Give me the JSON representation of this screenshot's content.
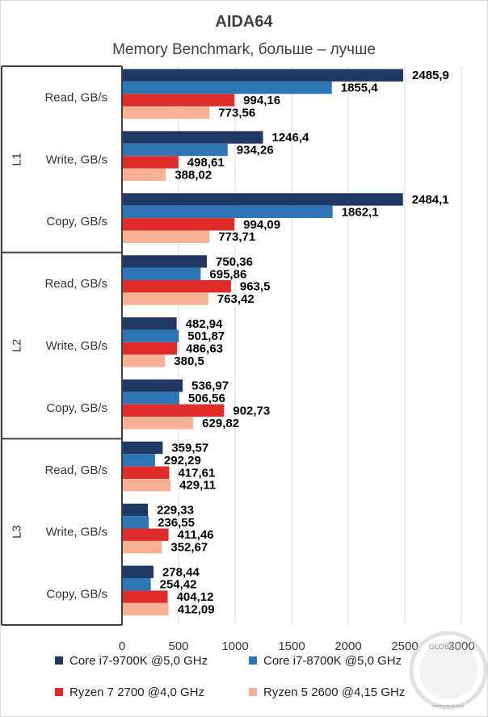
{
  "chart_data": {
    "type": "bar",
    "orientation": "horizontal",
    "title": "AIDA64",
    "subtitle": "Memory Benchmark, больше – лучше",
    "xlim": [
      0,
      3000
    ],
    "xticks": [
      0,
      500,
      1000,
      1500,
      2000,
      2500,
      3000
    ],
    "grid": true,
    "legend_position": "bottom",
    "groups": [
      {
        "label": "L1",
        "categories": [
          "Read, GB/s",
          "Write, GB/s",
          "Copy, GB/s"
        ]
      },
      {
        "label": "L2",
        "categories": [
          "Read, GB/s",
          "Write, GB/s",
          "Copy, GB/s"
        ]
      },
      {
        "label": "L3",
        "categories": [
          "Read, GB/s",
          "Write, GB/s",
          "Copy, GB/s"
        ]
      }
    ],
    "series": [
      {
        "name": "Core i7-9700K @5,0 GHz",
        "color": "#1f3864",
        "values": [
          2485.9,
          1246.4,
          2484.1,
          750.36,
          482.94,
          536.97,
          359.57,
          229.33,
          278.44
        ],
        "labels": [
          "2485,9",
          "1246,4",
          "2484,1",
          "750,36",
          "482,94",
          "536,97",
          "359,57",
          "229,33",
          "278,44"
        ]
      },
      {
        "name": "Core i7-8700K @5,0 GHz",
        "color": "#2e75b6",
        "values": [
          1855.4,
          934.26,
          1862.1,
          695.86,
          501.87,
          506.56,
          292.29,
          236.55,
          254.42
        ],
        "labels": [
          "1855,4",
          "934,26",
          "1862,1",
          "695,86",
          "501,87",
          "506,56",
          "292,29",
          "236,55",
          "254,42"
        ]
      },
      {
        "name": "Ryzen 7 2700 @4,0 GHz",
        "color": "#e02b2b",
        "values": [
          994.16,
          498.61,
          994.09,
          963.5,
          486.63,
          902.73,
          417.61,
          411.46,
          404.12
        ],
        "labels": [
          "994,16",
          "498,61",
          "994,09",
          "963,5",
          "486,63",
          "902,73",
          "417,61",
          "411,46",
          "404,12"
        ]
      },
      {
        "name": "Ryzen 5 2600 @4,15 GHz",
        "color": "#f8b195",
        "values": [
          773.56,
          388.02,
          773.71,
          763.42,
          380.5,
          629.82,
          429.11,
          352.67,
          412.09
        ],
        "labels": [
          "773,56",
          "388,02",
          "773,71",
          "763,42",
          "380,5",
          "629,82",
          "429,11",
          "352,67",
          "412,09"
        ]
      }
    ]
  },
  "watermark": {
    "text": "GLOBAL",
    "site": "www.geoid.com"
  }
}
